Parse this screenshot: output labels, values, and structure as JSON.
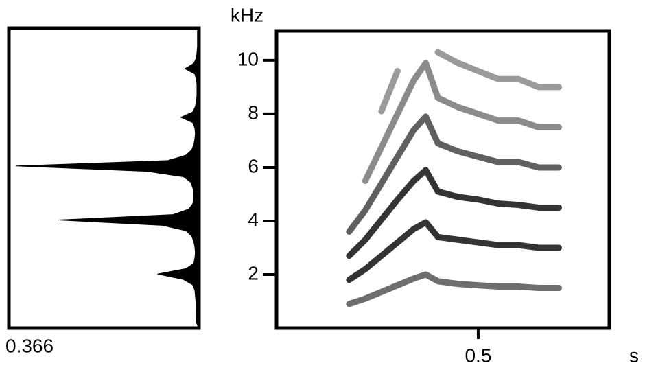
{
  "chart_data": [
    {
      "type": "spectrum",
      "x": [
        0.2,
        0.4,
        0.6,
        0.8,
        1.0,
        1.2,
        1.4,
        1.6,
        1.8,
        2.0,
        2.2,
        2.4,
        2.6,
        2.8,
        3.0,
        3.2,
        3.4,
        3.6,
        3.8,
        4.0,
        4.2,
        4.4,
        4.6,
        4.8,
        5.0,
        5.2,
        5.4,
        5.6,
        5.8,
        6.0,
        6.2,
        6.4,
        6.6,
        6.8,
        7.0,
        7.2,
        7.4,
        7.6,
        7.8,
        8.0,
        8.2,
        8.4,
        8.6,
        8.8,
        9.0,
        9.2,
        9.4,
        9.6,
        9.8,
        10.0,
        10.2,
        10.4,
        10.6,
        10.8,
        11.0
      ],
      "values": [
        0.005,
        0.006,
        0.006,
        0.005,
        0.006,
        0.007,
        0.008,
        0.012,
        0.03,
        0.08,
        0.025,
        0.01,
        0.008,
        0.007,
        0.008,
        0.01,
        0.014,
        0.025,
        0.07,
        0.272,
        0.05,
        0.02,
        0.012,
        0.01,
        0.01,
        0.012,
        0.016,
        0.03,
        0.1,
        0.352,
        0.06,
        0.025,
        0.014,
        0.01,
        0.008,
        0.007,
        0.008,
        0.012,
        0.035,
        0.012,
        0.007,
        0.005,
        0.004,
        0.004,
        0.004,
        0.005,
        0.008,
        0.027,
        0.01,
        0.005,
        0.004,
        0.003,
        0.003,
        0.003,
        0.003
      ],
      "color": "#000000",
      "xlim": [
        0.366,
        0
      ],
      "xticks": [
        0.366
      ],
      "ylim": [
        0,
        11.1
      ]
    },
    {
      "type": "spectrogram",
      "xlabel": "s",
      "ylabel": "kHz",
      "x": [
        0.18,
        0.22,
        0.26,
        0.3,
        0.34,
        0.37,
        0.4,
        0.45,
        0.5,
        0.55,
        0.6,
        0.65,
        0.7
      ],
      "series": [
        {
          "color": "#555555",
          "values": [
            0.9,
            1.1,
            1.35,
            1.6,
            1.85,
            2.0,
            1.75,
            1.65,
            1.6,
            1.55,
            1.55,
            1.5,
            1.5
          ]
        },
        {
          "color": "#111111",
          "values": [
            1.8,
            2.2,
            2.7,
            3.2,
            3.7,
            3.95,
            3.4,
            3.3,
            3.2,
            3.1,
            3.1,
            3.0,
            3.0
          ]
        },
        {
          "color": "#111111",
          "values": [
            2.7,
            3.3,
            4.05,
            4.8,
            5.5,
            5.9,
            5.1,
            4.9,
            4.8,
            4.65,
            4.6,
            4.5,
            4.5
          ]
        },
        {
          "color": "#444444",
          "values": [
            3.6,
            4.4,
            5.4,
            6.4,
            7.4,
            7.9,
            6.9,
            6.6,
            6.4,
            6.2,
            6.2,
            6.0,
            6.0
          ]
        },
        {
          "color": "#777777",
          "values": [
            null,
            5.5,
            6.75,
            8.0,
            9.25,
            9.9,
            8.6,
            8.25,
            8.0,
            7.75,
            7.75,
            7.5,
            7.5
          ]
        },
        {
          "color": "#888888",
          "values": [
            null,
            null,
            8.1,
            9.6,
            null,
            null,
            10.3,
            9.9,
            9.6,
            9.3,
            9.3,
            9.0,
            9.0
          ]
        }
      ],
      "xlim": [
        0,
        0.825
      ],
      "xticks": [
        0.5
      ],
      "ylim": [
        0,
        11.1
      ],
      "yticks": [
        2,
        4,
        6,
        8,
        10
      ]
    }
  ]
}
